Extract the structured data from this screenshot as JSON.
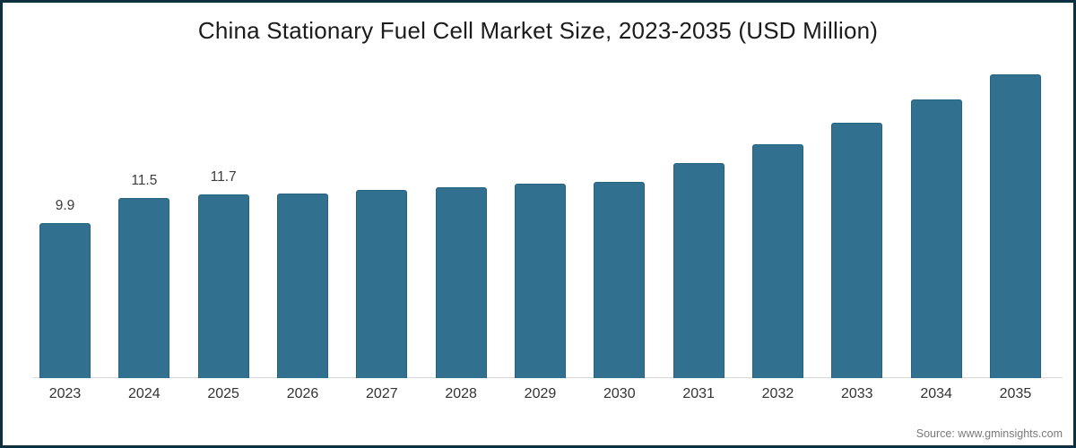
{
  "frame": {
    "border_color": "#0d3040",
    "background_color": "#ffffff"
  },
  "chart_data": {
    "type": "bar",
    "title": "China Stationary Fuel Cell Market Size, 2023-2035 (USD Million)",
    "categories": [
      "2023",
      "2024",
      "2025",
      "2026",
      "2027",
      "2028",
      "2029",
      "2030",
      "2031",
      "2032",
      "2033",
      "2034",
      "2035"
    ],
    "values": [
      9.9,
      11.5,
      11.7,
      11.8,
      12.0,
      12.2,
      12.4,
      12.5,
      13.7,
      14.9,
      16.3,
      17.8,
      19.4
    ],
    "data_labels": [
      "9.9",
      "11.5",
      "11.7",
      null,
      null,
      null,
      null,
      null,
      null,
      null,
      null,
      null,
      null
    ],
    "xlabel": "",
    "ylabel": "",
    "ylim": [
      0,
      19.4
    ],
    "grid": false,
    "legend_position": "none",
    "bar_color": "#31708f",
    "bar_border_color": "#27627f",
    "axis_line_color": "#d6d6d6",
    "label_color": "#3d3d3d",
    "tick_label_color": "#333333"
  },
  "footer": {
    "source_label": "Source: www.gminsights.com"
  }
}
